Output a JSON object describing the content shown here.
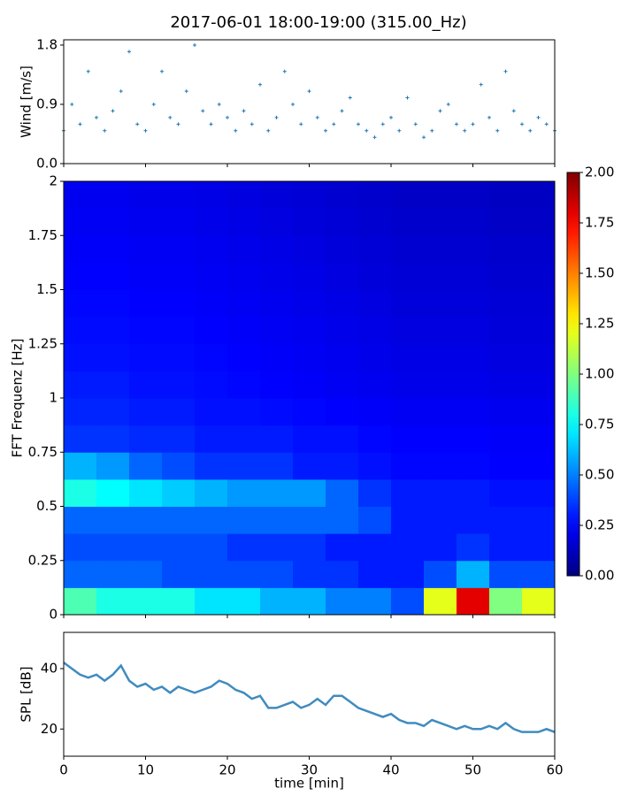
{
  "title": "2017-06-01 18:00-19:00 (315.00_Hz)",
  "chart_data": [
    {
      "type": "scatter",
      "ylabel": "Wind [m/s]",
      "color": "#1f77b4",
      "x": [
        0,
        1,
        2,
        3,
        4,
        5,
        6,
        7,
        8,
        9,
        10,
        11,
        12,
        13,
        14,
        15,
        16,
        17,
        18,
        19,
        20,
        21,
        22,
        23,
        24,
        25,
        26,
        27,
        28,
        29,
        30,
        31,
        32,
        33,
        34,
        35,
        36,
        37,
        38,
        39,
        40,
        41,
        42,
        43,
        44,
        45,
        46,
        47,
        48,
        49,
        50,
        51,
        52,
        53,
        54,
        55,
        56,
        57,
        58,
        59,
        60
      ],
      "values": [
        0.5,
        0.9,
        0.6,
        1.4,
        0.7,
        0.5,
        0.8,
        1.1,
        1.7,
        0.6,
        0.5,
        0.9,
        1.4,
        0.7,
        0.6,
        1.1,
        1.8,
        0.8,
        0.6,
        0.9,
        0.7,
        0.5,
        0.8,
        0.6,
        1.2,
        0.5,
        0.7,
        1.4,
        0.9,
        0.6,
        1.1,
        0.7,
        0.5,
        0.6,
        0.8,
        1.0,
        0.6,
        0.5,
        0.4,
        0.6,
        0.7,
        0.5,
        1.0,
        0.6,
        0.4,
        0.5,
        0.8,
        0.9,
        0.6,
        0.5,
        0.6,
        1.2,
        0.7,
        0.5,
        1.4,
        0.8,
        0.6,
        0.5,
        0.7,
        0.6,
        0.5
      ],
      "xlim": [
        0,
        60
      ],
      "xticks": [
        0,
        10,
        20,
        30,
        40,
        50,
        60
      ],
      "ylim": [
        0,
        1.88
      ],
      "yticks": [
        {
          "value": 0,
          "label": "0.0"
        },
        {
          "value": 0.9,
          "label": "0.9"
        },
        {
          "value": 1.8,
          "label": "1.8"
        }
      ]
    },
    {
      "type": "heatmap",
      "ylabel": "FFT Frequenz [Hz]",
      "colormap": "jet",
      "time_bins": [
        0,
        4,
        8,
        12,
        16,
        20,
        24,
        28,
        32,
        36,
        40,
        44,
        48,
        52,
        56,
        60
      ],
      "freq_bins": [
        0,
        0.125,
        0.25,
        0.375,
        0.5,
        0.625,
        0.75,
        0.875,
        1,
        1.125,
        1.25,
        1.375,
        1.5,
        1.625,
        1.75,
        1.875,
        2
      ],
      "z": [
        [
          0.9,
          0.8,
          0.8,
          0.8,
          0.7,
          0.7,
          0.6,
          0.6,
          0.5,
          0.5,
          0.4,
          1.2,
          1.8,
          1.0,
          1.2
        ],
        [
          0.45,
          0.45,
          0.45,
          0.4,
          0.4,
          0.4,
          0.4,
          0.35,
          0.35,
          0.3,
          0.3,
          0.4,
          0.6,
          0.4,
          0.4
        ],
        [
          0.4,
          0.4,
          0.4,
          0.4,
          0.4,
          0.35,
          0.35,
          0.35,
          0.3,
          0.3,
          0.3,
          0.3,
          0.35,
          0.3,
          0.3
        ],
        [
          0.45,
          0.45,
          0.45,
          0.45,
          0.45,
          0.45,
          0.45,
          0.45,
          0.45,
          0.4,
          0.3,
          0.3,
          0.3,
          0.3,
          0.3
        ],
        [
          0.8,
          0.75,
          0.7,
          0.65,
          0.6,
          0.55,
          0.55,
          0.55,
          0.45,
          0.35,
          0.3,
          0.3,
          0.3,
          0.28,
          0.28
        ],
        [
          0.6,
          0.55,
          0.45,
          0.4,
          0.35,
          0.35,
          0.35,
          0.3,
          0.3,
          0.28,
          0.26,
          0.26,
          0.26,
          0.25,
          0.25
        ],
        [
          0.35,
          0.35,
          0.33,
          0.33,
          0.3,
          0.3,
          0.3,
          0.28,
          0.28,
          0.26,
          0.25,
          0.25,
          0.25,
          0.24,
          0.24
        ],
        [
          0.32,
          0.32,
          0.3,
          0.3,
          0.28,
          0.28,
          0.27,
          0.26,
          0.25,
          0.24,
          0.23,
          0.23,
          0.23,
          0.22,
          0.22
        ],
        [
          0.3,
          0.3,
          0.28,
          0.28,
          0.27,
          0.26,
          0.25,
          0.24,
          0.23,
          0.22,
          0.21,
          0.21,
          0.21,
          0.2,
          0.2
        ],
        [
          0.28,
          0.28,
          0.27,
          0.27,
          0.26,
          0.25,
          0.24,
          0.23,
          0.22,
          0.21,
          0.2,
          0.2,
          0.2,
          0.19,
          0.19
        ],
        [
          0.27,
          0.27,
          0.26,
          0.26,
          0.25,
          0.24,
          0.23,
          0.22,
          0.21,
          0.2,
          0.19,
          0.19,
          0.19,
          0.18,
          0.18
        ],
        [
          0.26,
          0.26,
          0.25,
          0.25,
          0.24,
          0.23,
          0.22,
          0.21,
          0.2,
          0.19,
          0.18,
          0.18,
          0.18,
          0.17,
          0.17
        ],
        [
          0.25,
          0.25,
          0.24,
          0.24,
          0.23,
          0.22,
          0.21,
          0.2,
          0.19,
          0.18,
          0.17,
          0.17,
          0.17,
          0.16,
          0.16
        ],
        [
          0.24,
          0.24,
          0.23,
          0.23,
          0.22,
          0.21,
          0.2,
          0.19,
          0.18,
          0.17,
          0.16,
          0.16,
          0.16,
          0.15,
          0.15
        ],
        [
          0.23,
          0.23,
          0.22,
          0.22,
          0.21,
          0.2,
          0.19,
          0.18,
          0.17,
          0.16,
          0.15,
          0.15,
          0.15,
          0.14,
          0.14
        ],
        [
          0.22,
          0.22,
          0.21,
          0.21,
          0.2,
          0.19,
          0.18,
          0.17,
          0.16,
          0.15,
          0.14,
          0.14,
          0.14,
          0.13,
          0.13
        ]
      ],
      "xlim": [
        0,
        60
      ],
      "xticks": [
        0,
        10,
        20,
        30,
        40,
        50,
        60
      ],
      "ylim": [
        0,
        2
      ],
      "yticks": [
        0,
        0.25,
        0.5,
        0.75,
        1,
        1.25,
        1.5,
        1.75,
        2
      ],
      "clim": [
        0,
        2
      ],
      "cticks": [
        {
          "value": 0,
          "label": "0.00"
        },
        {
          "value": 0.25,
          "label": "0.25"
        },
        {
          "value": 0.5,
          "label": "0.50"
        },
        {
          "value": 0.75,
          "label": "0.75"
        },
        {
          "value": 1,
          "label": "1.00"
        },
        {
          "value": 1.25,
          "label": "1.25"
        },
        {
          "value": 1.5,
          "label": "1.50"
        },
        {
          "value": 1.75,
          "label": "1.75"
        },
        {
          "value": 2,
          "label": "2.00"
        }
      ]
    },
    {
      "type": "line",
      "ylabel": "SPL [dB]",
      "xlabel": "time [min]",
      "color": "#1f77b4",
      "x": [
        0,
        1,
        2,
        3,
        4,
        5,
        6,
        7,
        8,
        9,
        10,
        11,
        12,
        13,
        14,
        15,
        16,
        17,
        18,
        19,
        20,
        21,
        22,
        23,
        24,
        25,
        26,
        27,
        28,
        29,
        30,
        31,
        32,
        33,
        34,
        35,
        36,
        37,
        38,
        39,
        40,
        41,
        42,
        43,
        44,
        45,
        46,
        47,
        48,
        49,
        50,
        51,
        52,
        53,
        54,
        55,
        56,
        57,
        58,
        59,
        60
      ],
      "values": [
        42,
        40,
        38,
        37,
        38,
        36,
        38,
        41,
        36,
        34,
        35,
        33,
        34,
        32,
        34,
        33,
        32,
        33,
        34,
        36,
        35,
        33,
        32,
        30,
        31,
        27,
        27,
        28,
        29,
        27,
        28,
        30,
        28,
        31,
        31,
        29,
        27,
        26,
        25,
        24,
        25,
        23,
        22,
        22,
        21,
        23,
        22,
        21,
        20,
        21,
        20,
        20,
        21,
        20,
        22,
        20,
        19,
        19,
        19,
        20,
        19
      ],
      "xlim": [
        0,
        60
      ],
      "xticks": [
        0,
        10,
        20,
        30,
        40,
        50,
        60
      ],
      "ylim": [
        11,
        52
      ],
      "yticks": [
        20,
        40
      ]
    }
  ]
}
